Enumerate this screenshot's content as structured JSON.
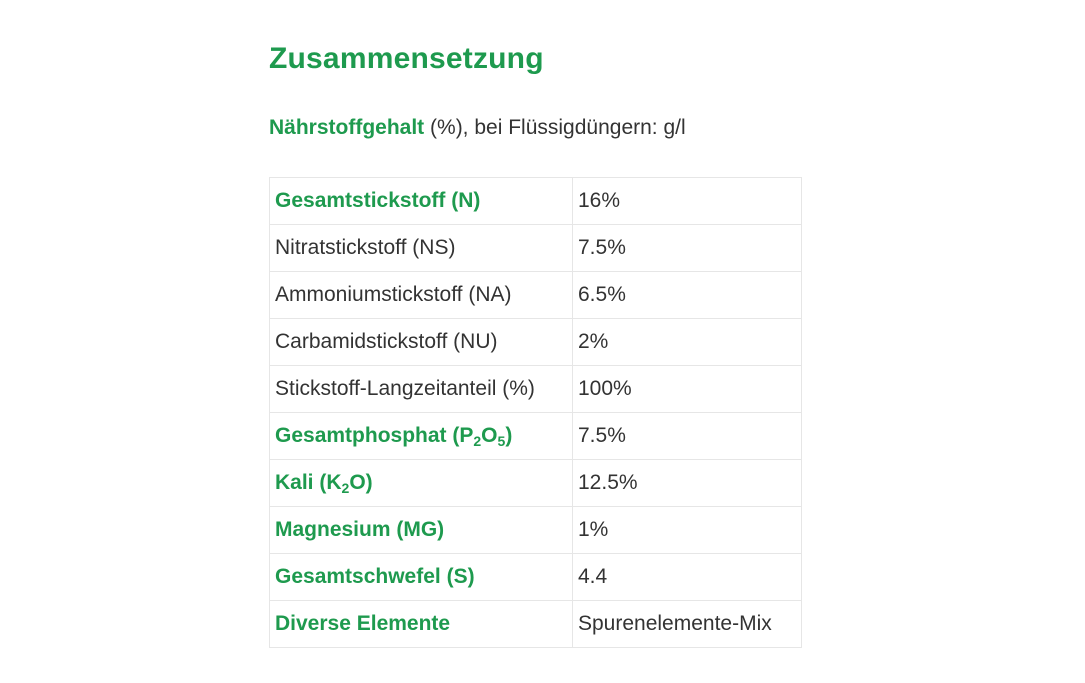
{
  "page": {
    "title": "Zusammensetzung",
    "subtitle_strong": "Nährstoffgehalt",
    "subtitle_rest": " (%), bei Flüssigdüngern: g/l"
  },
  "table": {
    "rows": [
      {
        "parts": [
          {
            "text": "Gesamtstickstoff (N)"
          }
        ],
        "highlight": true,
        "value": "16%"
      },
      {
        "parts": [
          {
            "text": "Nitratstickstoff (NS)"
          }
        ],
        "highlight": false,
        "value": "7.5%"
      },
      {
        "parts": [
          {
            "text": "Ammoniumstickstoff (NA)"
          }
        ],
        "highlight": false,
        "value": "6.5%"
      },
      {
        "parts": [
          {
            "text": "Carbamidstickstoff (NU)"
          }
        ],
        "highlight": false,
        "value": "2%"
      },
      {
        "parts": [
          {
            "text": "Stickstoff-Langzeitanteil (%)"
          }
        ],
        "highlight": false,
        "value": "100%"
      },
      {
        "parts": [
          {
            "text": "Gesamtphosphat (P"
          },
          {
            "text": "2",
            "sub": true
          },
          {
            "text": "O"
          },
          {
            "text": "5",
            "sub": true
          },
          {
            "text": ")"
          }
        ],
        "highlight": true,
        "value": "7.5%"
      },
      {
        "parts": [
          {
            "text": "Kali (K"
          },
          {
            "text": "2",
            "sub": true
          },
          {
            "text": "O)"
          }
        ],
        "highlight": true,
        "value": "12.5%"
      },
      {
        "parts": [
          {
            "text": "Magnesium (MG)"
          }
        ],
        "highlight": true,
        "value": "1%"
      },
      {
        "parts": [
          {
            "text": "Gesamtschwefel (S)"
          }
        ],
        "highlight": true,
        "value": "4.4"
      },
      {
        "parts": [
          {
            "text": "Diverse Elemente"
          }
        ],
        "highlight": true,
        "value": "Spurenelemente-Mix"
      }
    ]
  },
  "colors": {
    "accent": "#1e9a4e",
    "text": "#333333",
    "border": "#e6e6e6"
  }
}
